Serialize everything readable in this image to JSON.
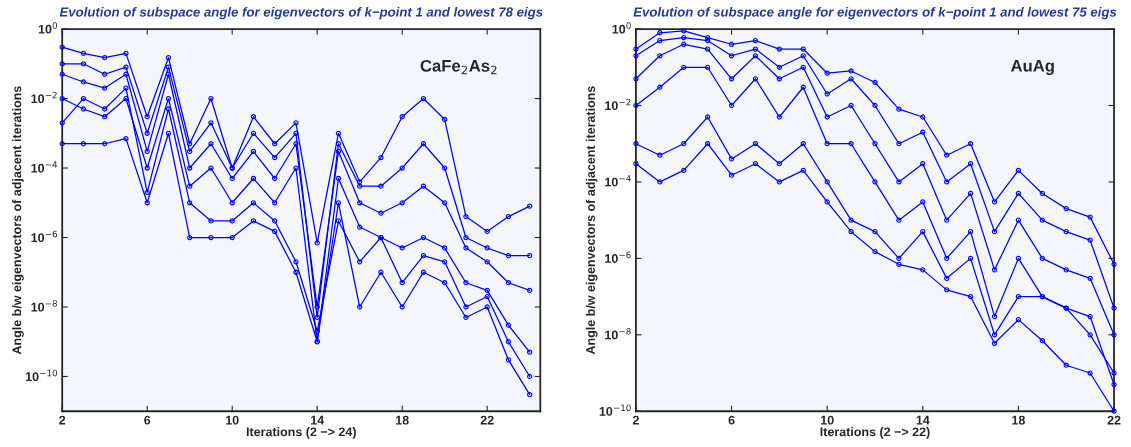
{
  "chart_data": [
    {
      "type": "line",
      "title": "Evolution of subspace angle for eigenvectors of k−point 1 and lowest 78 eigs",
      "xlabel": "Iterations (2 −> 24)",
      "ylabel": "Angle b/w eigenvectors of adjacent iterations",
      "annotations": [
        "CaFe$_{2}$As$_{2}$"
      ],
      "log": "y",
      "grid": false,
      "legend": false,
      "marker": "circle",
      "line_style": "solid",
      "x": [
        2,
        3,
        4,
        5,
        6,
        7,
        8,
        9,
        10,
        11,
        12,
        13,
        14,
        15,
        16,
        17,
        18,
        19,
        20,
        21,
        22,
        23,
        24
      ],
      "xlim": [
        2,
        24.5
      ],
      "xticks": [
        2,
        6,
        10,
        14,
        18,
        22
      ],
      "ylim": [
        1e-11,
        1
      ],
      "yticks": [
        {
          "value": 1,
          "label": "10$^{0}$"
        },
        {
          "value": 0.01,
          "label": "10$^{−2}$"
        },
        {
          "value": 0.0001,
          "label": "10$^{−4}$"
        },
        {
          "value": 1e-06,
          "label": "10$^{−6}$"
        },
        {
          "value": 1e-08,
          "label": "10$^{−8}$"
        },
        {
          "value": 1e-10,
          "label": "10$^{−10}$"
        }
      ],
      "series": [
        {
          "color": "#0000ff",
          "values": [
            0.3,
            0.2,
            0.15,
            0.2,
            0.003,
            0.15,
            0.0005,
            0.01,
            0.0001,
            0.003,
            0.0005,
            0.002,
            7e-07,
            0.001,
            4e-05,
            0.0002,
            0.003,
            0.01,
            0.0025,
            4e-06,
            1.5e-06,
            4e-06,
            8e-06
          ]
        },
        {
          "color": "#0000ff",
          "values": [
            0.1,
            0.1,
            0.05,
            0.08,
            0.001,
            0.08,
            0.0003,
            0.002,
            0.0001,
            0.001,
            0.0002,
            0.001,
            5e-09,
            0.0005,
            3e-05,
            3e-05,
            0.0001,
            0.0005,
            0.0001,
            1e-06,
            5e-07,
            3e-07,
            3e-07
          ]
        },
        {
          "color": "#0000ff",
          "values": [
            0.05,
            0.03,
            0.02,
            0.05,
            0.0003,
            0.05,
            0.0001,
            0.0005,
            5e-05,
            0.0003,
            5e-05,
            0.0005,
            1e-08,
            0.0003,
            1e-05,
            5e-06,
            1e-05,
            3e-05,
            1e-05,
            5e-07,
            2e-07,
            5e-08,
            3e-08
          ]
        },
        {
          "color": "#0000ff",
          "values": [
            0.01,
            0.005,
            0.003,
            0.01,
            0.0001,
            0.01,
            3e-05,
            0.0001,
            1e-05,
            5e-05,
            1e-05,
            0.0001,
            1e-09,
            5e-05,
            2e-06,
            1e-06,
            5e-07,
            1e-06,
            5e-07,
            5e-08,
            3e-08,
            3e-09,
            5e-10
          ]
        },
        {
          "color": "#0000ff",
          "values": [
            0.002,
            0.01,
            0.005,
            0.02,
            2e-05,
            0.005,
            1e-05,
            3e-06,
            3e-06,
            1e-05,
            3e-06,
            2e-07,
            2e-09,
            3e-06,
            2e-07,
            1e-06,
            5e-08,
            3e-07,
            2e-07,
            1e-08,
            2e-08,
            1e-09,
            1e-10
          ]
        },
        {
          "color": "#0000ff",
          "values": [
            0.0005,
            0.0005,
            0.0005,
            0.0007,
            1e-05,
            0.001,
            1e-06,
            1e-06,
            1e-06,
            3e-06,
            1.5e-06,
            1e-07,
            1e-09,
            1e-05,
            1e-08,
            1e-07,
            1e-08,
            1e-07,
            5e-08,
            5e-09,
            1e-08,
            3e-10,
            3e-11
          ]
        }
      ]
    },
    {
      "type": "line",
      "title": "Evolution of subspace angle for eigenvectors of k−point 1 and lowest 75 eigs",
      "xlabel": "Iterations (2 −> 22)",
      "ylabel": "Angle b/w eigenvectors of adjacent iterations",
      "annotations": [
        "AuAg"
      ],
      "log": "y",
      "grid": false,
      "legend": false,
      "marker": "circle",
      "line_style": "solid",
      "x": [
        2,
        3,
        4,
        5,
        6,
        7,
        8,
        9,
        10,
        11,
        12,
        13,
        14,
        15,
        16,
        17,
        18,
        19,
        20,
        21,
        22
      ],
      "xlim": [
        2,
        22
      ],
      "xticks": [
        2,
        6,
        10,
        14,
        18,
        22
      ],
      "ylim": [
        1e-10,
        1
      ],
      "yticks": [
        {
          "value": 1,
          "label": "10$^{0}$"
        },
        {
          "value": 0.01,
          "label": "10$^{−2}$"
        },
        {
          "value": 0.0001,
          "label": "10$^{−4}$"
        },
        {
          "value": 1e-06,
          "label": "10$^{−6}$"
        },
        {
          "value": 1e-08,
          "label": "10$^{−8}$"
        },
        {
          "value": 1e-10,
          "label": "10$^{−10}$"
        }
      ],
      "series": [
        {
          "color": "#0000ff",
          "values": [
            0.3,
            0.8,
            0.9,
            0.6,
            0.4,
            0.5,
            0.3,
            0.3,
            0.07,
            0.08,
            0.04,
            0.008,
            0.005,
            0.0005,
            0.001,
            3e-05,
            0.0002,
            5e-05,
            2e-05,
            1.2e-05,
            7e-07
          ]
        },
        {
          "color": "#0000ff",
          "values": [
            0.2,
            0.5,
            0.6,
            0.5,
            0.2,
            0.3,
            0.1,
            0.2,
            0.02,
            0.05,
            0.01,
            0.001,
            0.002,
            0.0001,
            0.0003,
            5e-06,
            5e-05,
            1e-05,
            5e-06,
            3e-06,
            5e-08
          ]
        },
        {
          "color": "#0000ff",
          "values": [
            0.05,
            0.2,
            0.4,
            0.3,
            0.05,
            0.2,
            0.05,
            0.1,
            0.005,
            0.01,
            0.001,
            0.0001,
            0.0003,
            1e-05,
            5e-05,
            5e-07,
            1e-05,
            1e-06,
            5e-07,
            3e-07,
            1e-08
          ]
        },
        {
          "color": "#0000ff",
          "values": [
            0.01,
            0.03,
            0.1,
            0.1,
            0.01,
            0.05,
            0.005,
            0.03,
            0.001,
            0.001,
            0.0001,
            1e-05,
            3e-05,
            1e-06,
            5e-06,
            3e-08,
            1e-06,
            1e-07,
            5e-08,
            3e-08,
            5e-10
          ]
        },
        {
          "color": "#0000ff",
          "values": [
            0.001,
            0.0005,
            0.001,
            0.005,
            0.0004,
            0.001,
            0.0003,
            0.001,
            0.0001,
            1e-05,
            5e-06,
            1e-06,
            5e-06,
            3e-07,
            1e-06,
            1e-08,
            1e-07,
            1e-07,
            5e-08,
            1e-08,
            1e-09
          ]
        },
        {
          "color": "#0000ff",
          "values": [
            0.0003,
            0.0001,
            0.0002,
            0.001,
            0.00015,
            0.0003,
            0.0001,
            0.0002,
            3e-05,
            5e-06,
            1.5e-06,
            7e-07,
            5e-07,
            1.5e-07,
            1e-07,
            6e-09,
            2.5e-08,
            7e-09,
            1.6e-09,
            1e-09,
            1e-10
          ]
        }
      ]
    }
  ]
}
